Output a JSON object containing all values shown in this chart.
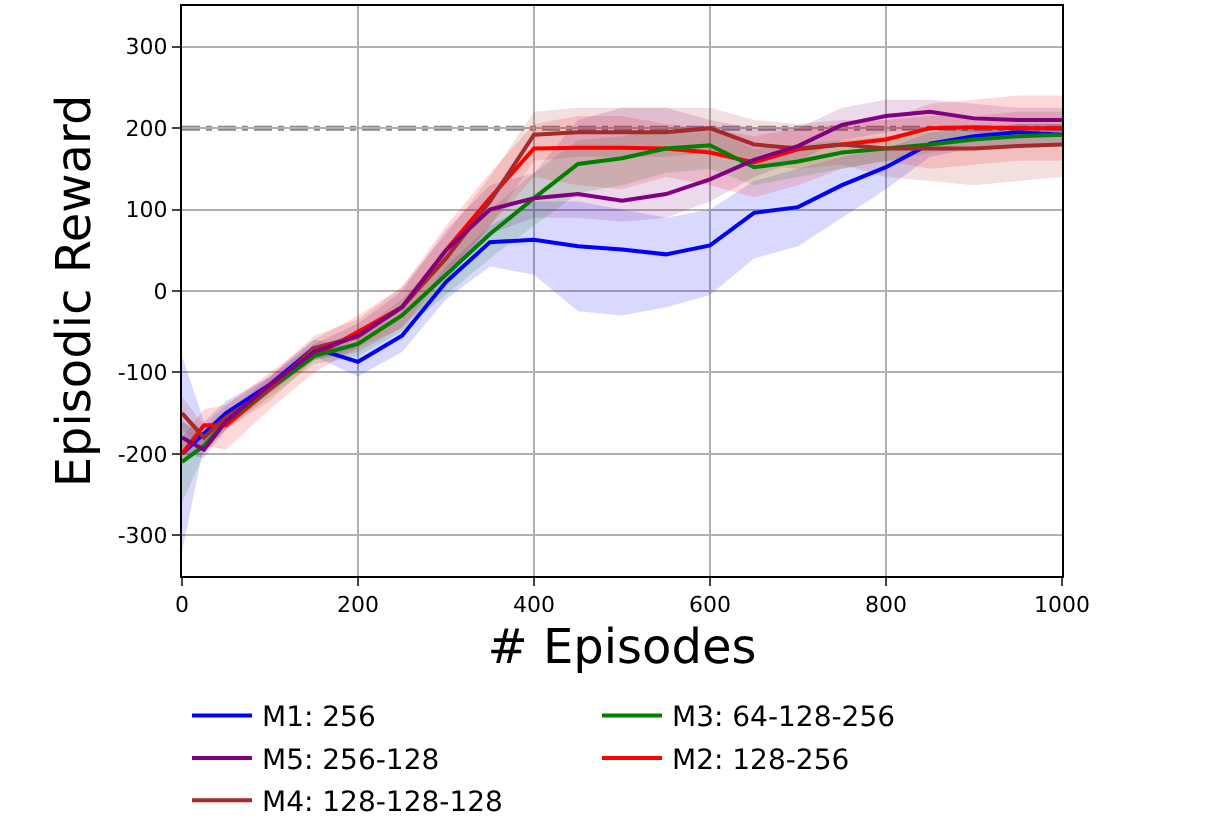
{
  "chart_data": {
    "type": "line",
    "xlabel": "# Episodes",
    "ylabel": "Episodic Reward",
    "x": [
      0,
      25,
      50,
      100,
      150,
      200,
      250,
      300,
      350,
      400,
      450,
      500,
      550,
      600,
      650,
      700,
      750,
      800,
      850,
      900,
      950,
      1000
    ],
    "xlim": [
      0,
      1000
    ],
    "xticks": [
      0,
      200,
      400,
      600,
      800,
      1000
    ],
    "ylim": [
      -350,
      350
    ],
    "yticks": [
      -300,
      -200,
      -100,
      0,
      100,
      200,
      300
    ],
    "grid": true,
    "legend": "bottom",
    "marker": "none",
    "line_style": "solid",
    "ref_lines": [
      {
        "axis": "y",
        "value": 200,
        "color": "#888888",
        "line_style": "dashdot"
      }
    ],
    "series": [
      {
        "name": "M1: 256",
        "color": "#0000ff",
        "values": [
          -200,
          -175,
          -150,
          -115,
          -70,
          -87,
          -55,
          11,
          60,
          63,
          55,
          51,
          45,
          56,
          96,
          103,
          130,
          152,
          181,
          190,
          195,
          192
        ],
        "lower": [
          -320,
          -190,
          -165,
          -125,
          -80,
          -105,
          -75,
          -10,
          30,
          20,
          -25,
          -30,
          -20,
          -5,
          40,
          55,
          90,
          125,
          165,
          175,
          180,
          180
        ],
        "upper": [
          -80,
          -160,
          -135,
          -105,
          -60,
          -70,
          -40,
          30,
          80,
          110,
          110,
          100,
          90,
          100,
          135,
          150,
          165,
          175,
          195,
          200,
          205,
          205
        ]
      },
      {
        "name": "M2: 128-256",
        "color": "#ff0000",
        "values": [
          -200,
          -165,
          -165,
          -120,
          -80,
          -50,
          -20,
          50,
          114,
          175,
          176,
          176,
          175,
          170,
          158,
          174,
          180,
          186,
          200,
          201,
          200,
          200
        ],
        "lower": [
          -210,
          -190,
          -195,
          -145,
          -100,
          -70,
          -45,
          20,
          80,
          140,
          130,
          125,
          140,
          130,
          115,
          130,
          150,
          160,
          150,
          155,
          160,
          160
        ],
        "upper": [
          -180,
          -145,
          -140,
          -100,
          -60,
          -30,
          5,
          80,
          145,
          205,
          215,
          215,
          205,
          200,
          190,
          200,
          205,
          210,
          230,
          235,
          240,
          240
        ]
      },
      {
        "name": "M3: 64-128-256",
        "color": "#008000",
        "values": [
          -210,
          -190,
          -160,
          -120,
          -80,
          -65,
          -30,
          20,
          70,
          114,
          156,
          163,
          175,
          179,
          152,
          159,
          170,
          175,
          180,
          186,
          190,
          192
        ],
        "lower": [
          -260,
          -200,
          -170,
          -130,
          -90,
          -80,
          -50,
          -5,
          40,
          80,
          120,
          130,
          145,
          150,
          130,
          140,
          150,
          160,
          170,
          175,
          180,
          180
        ],
        "upper": [
          -160,
          -175,
          -150,
          -110,
          -70,
          -50,
          -10,
          45,
          100,
          145,
          185,
          190,
          200,
          200,
          175,
          180,
          185,
          190,
          195,
          200,
          205,
          205
        ]
      },
      {
        "name": "M4: 128-128-128",
        "color": "#a52a2a",
        "values": [
          -150,
          -180,
          -155,
          -120,
          -70,
          -56,
          -20,
          40,
          110,
          192,
          195,
          195,
          195,
          200,
          180,
          175,
          180,
          175,
          175,
          175,
          178,
          180
        ],
        "lower": [
          -170,
          -195,
          -170,
          -135,
          -85,
          -75,
          -45,
          10,
          80,
          160,
          165,
          165,
          165,
          170,
          155,
          150,
          155,
          140,
          135,
          130,
          135,
          140
        ],
        "upper": [
          -130,
          -165,
          -140,
          -105,
          -55,
          -35,
          5,
          70,
          140,
          220,
          225,
          225,
          225,
          225,
          210,
          205,
          210,
          210,
          215,
          215,
          220,
          220
        ]
      },
      {
        "name": "M5: 256-128",
        "color": "#800080",
        "values": [
          -180,
          -195,
          -160,
          -115,
          -75,
          -55,
          -20,
          50,
          100,
          114,
          119,
          111,
          119,
          137,
          161,
          178,
          204,
          215,
          220,
          212,
          210,
          210
        ],
        "lower": [
          -200,
          -205,
          -170,
          -125,
          -85,
          -70,
          -40,
          25,
          70,
          90,
          90,
          85,
          90,
          110,
          140,
          160,
          185,
          195,
          200,
          195,
          190,
          190
        ],
        "upper": [
          -160,
          -180,
          -150,
          -105,
          -65,
          -40,
          0,
          75,
          130,
          145,
          210,
          225,
          225,
          210,
          200,
          200,
          225,
          235,
          235,
          230,
          225,
          225
        ]
      }
    ]
  }
}
